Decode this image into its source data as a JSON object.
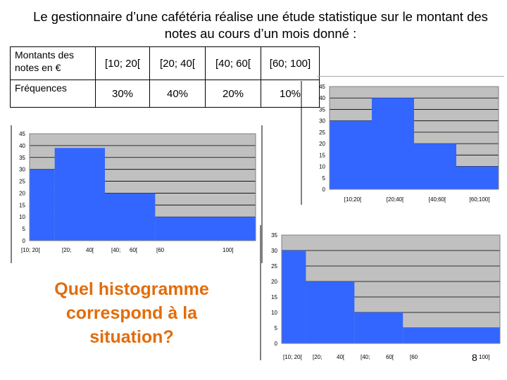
{
  "title": "Le gestionnaire d’une cafétéria réalise une étude statistique sur le montant des notes au cours d’un mois donné :",
  "table": {
    "row1_header": "Montants des notes en €",
    "row2_header": "Fréquences",
    "intervals": [
      "[10; 20[",
      "[20; 40[",
      "[40; 60[",
      "[60; 100]"
    ],
    "frequencies": [
      "30%",
      "40%",
      "20%",
      "10%"
    ]
  },
  "question": "Quel histogramme correspond à la situation?",
  "page_number": "8",
  "chart_data": [
    {
      "type": "bar",
      "id": "histogram-left",
      "y_ticks": [
        "0",
        "5",
        "10",
        "15",
        "20",
        "25",
        "30",
        "35",
        "40",
        "45"
      ],
      "ylim": [
        0,
        45
      ],
      "x_tick_labels": [
        "[10; 20[",
        "[20;",
        "40[",
        "[40;",
        "60[",
        "[60",
        "100]"
      ],
      "bins": [
        {
          "x0": 10,
          "x1": 20,
          "value": 30
        },
        {
          "x0": 20,
          "x1": 40,
          "value": 39
        },
        {
          "x0": 40,
          "x1": 60,
          "value": 20
        },
        {
          "x0": 60,
          "x1": 100,
          "value": 10
        }
      ],
      "xlim": [
        10,
        100
      ],
      "colors": {
        "bar": "#3366ff",
        "plot_bg": "#c0c0c0",
        "grid": "#000000"
      }
    },
    {
      "type": "bar",
      "id": "histogram-top-right",
      "y_ticks": [
        "0",
        "5",
        "10",
        "15",
        "20",
        "25",
        "30",
        "35",
        "40",
        "45"
      ],
      "ylim": [
        0,
        45
      ],
      "x_tick_labels": [
        "[10;20[",
        "[20;40[",
        "[40;60[",
        "[60;100]"
      ],
      "bins": [
        {
          "x0": 0,
          "x1": 1,
          "value": 30
        },
        {
          "x0": 1,
          "x1": 2,
          "value": 40
        },
        {
          "x0": 2,
          "x1": 3,
          "value": 20
        },
        {
          "x0": 3,
          "x1": 4,
          "value": 10
        }
      ],
      "xlim": [
        0,
        4
      ],
      "colors": {
        "bar": "#3366ff",
        "plot_bg": "#c0c0c0",
        "grid": "#000000"
      }
    },
    {
      "type": "bar",
      "id": "histogram-bottom-right",
      "y_ticks": [
        "0",
        "5",
        "10",
        "15",
        "20",
        "25",
        "30",
        "35"
      ],
      "ylim": [
        0,
        35
      ],
      "x_tick_labels": [
        "[10; 20[",
        "[20;",
        "40[",
        "[40;",
        "60[",
        "[60",
        "100]"
      ],
      "bins": [
        {
          "x0": 10,
          "x1": 20,
          "value": 30
        },
        {
          "x0": 20,
          "x1": 40,
          "value": 20
        },
        {
          "x0": 40,
          "x1": 60,
          "value": 10
        },
        {
          "x0": 60,
          "x1": 100,
          "value": 5
        }
      ],
      "xlim": [
        10,
        100
      ],
      "colors": {
        "bar": "#3366ff",
        "plot_bg": "#c0c0c0",
        "grid": "#000000"
      }
    }
  ]
}
